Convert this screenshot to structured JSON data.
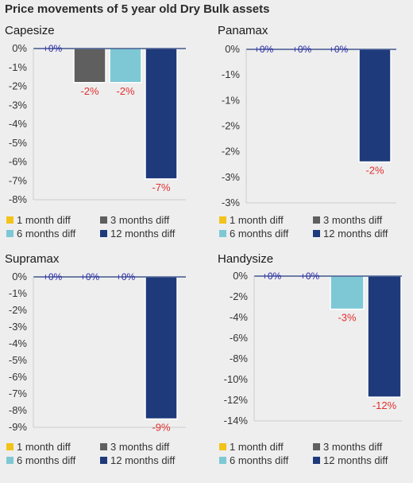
{
  "title": "Price movements of 5 year old Dry Bulk assets",
  "legend": {
    "items": [
      {
        "label": "1 month diff",
        "color": "#f2c31a"
      },
      {
        "label": "3 months diff",
        "color": "#5f5f5f"
      },
      {
        "label": "6 months diff",
        "color": "#7ec8d6"
      },
      {
        "label": "12 months diff",
        "color": "#1f3a7a"
      }
    ]
  },
  "chart_data": [
    {
      "type": "bar",
      "title": "Capesize",
      "categories": [
        "1 month diff",
        "3 months diff",
        "6 months diff",
        "12 months diff"
      ],
      "values": [
        0,
        -1.8,
        -1.8,
        -6.9
      ],
      "data_labels": [
        "+0%",
        "-2%",
        "-2%",
        "-7%"
      ],
      "ylim": [
        -8,
        0
      ],
      "yticks": [
        0,
        -1,
        -2,
        -3,
        -4,
        -5,
        -6,
        -7,
        -8
      ],
      "ytick_labels": [
        "0%",
        "-1%",
        "-2%",
        "-3%",
        "-4%",
        "-5%",
        "-6%",
        "-7%",
        "-8%"
      ],
      "grid": false,
      "legend": "bottom"
    },
    {
      "type": "bar",
      "title": "Panamax",
      "categories": [
        "1 month diff",
        "3 months diff",
        "6 months diff",
        "12 months diff"
      ],
      "values": [
        0,
        0,
        0,
        -2.2
      ],
      "data_labels": [
        "+0%",
        "+0%",
        "+0%",
        "-2%"
      ],
      "ylim": [
        -3,
        0
      ],
      "yticks": [
        0,
        -0.5,
        -1,
        -1.5,
        -2,
        -2.5,
        -3
      ],
      "ytick_labels": [
        "0%",
        "-1%",
        "-1%",
        "-2%",
        "-2%",
        "-3%",
        "-3%"
      ],
      "grid": false,
      "legend": "bottom"
    },
    {
      "type": "bar",
      "title": "Supramax",
      "categories": [
        "1 month diff",
        "3 months diff",
        "6 months diff",
        "12 months diff"
      ],
      "values": [
        0,
        0,
        0,
        -8.5
      ],
      "data_labels": [
        "+0%",
        "+0%",
        "+0%",
        "-9%"
      ],
      "ylim": [
        -9,
        0
      ],
      "yticks": [
        0,
        -1,
        -2,
        -3,
        -4,
        -5,
        -6,
        -7,
        -8,
        -9
      ],
      "ytick_labels": [
        "0%",
        "-1%",
        "-2%",
        "-3%",
        "-4%",
        "-5%",
        "-6%",
        "-7%",
        "-8%",
        "-9%"
      ],
      "grid": false,
      "legend": "bottom"
    },
    {
      "type": "bar",
      "title": "Handysize",
      "categories": [
        "1 month diff",
        "3 months diff",
        "6 months diff",
        "12 months diff"
      ],
      "values": [
        0,
        0,
        -3.2,
        -11.7
      ],
      "data_labels": [
        "+0%",
        "+0%",
        "-3%",
        "-12%"
      ],
      "ylim": [
        -14,
        0
      ],
      "yticks": [
        0,
        -2,
        -4,
        -6,
        -8,
        -10,
        -12,
        -14
      ],
      "ytick_labels": [
        "0%",
        "-2%",
        "-4%",
        "-6%",
        "-8%",
        "-10%",
        "-12%",
        "-14%"
      ],
      "grid": false,
      "legend": "bottom"
    }
  ]
}
